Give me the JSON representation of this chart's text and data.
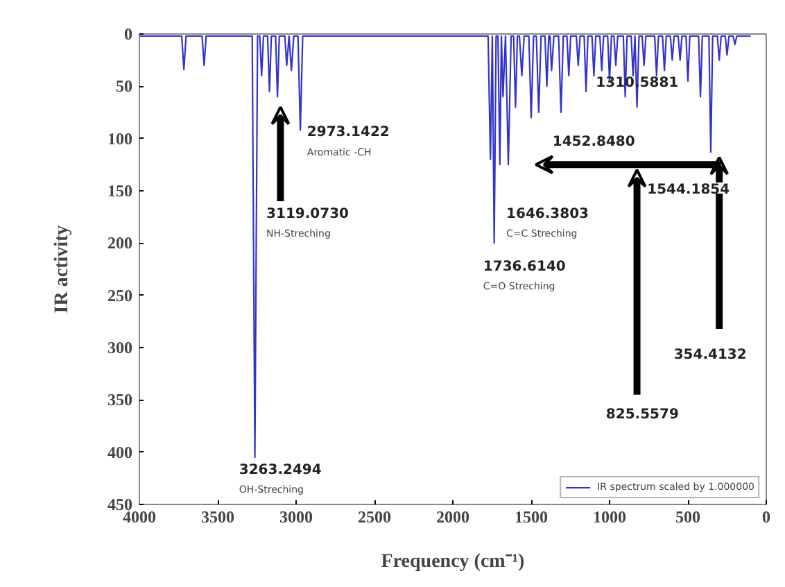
{
  "chart_data": {
    "type": "line",
    "xlabel": "Frequency (cm⁻¹)",
    "ylabel": "IR activity",
    "xlim": [
      4000,
      0
    ],
    "ylim": [
      450,
      0
    ],
    "xticks": [
      4000,
      3500,
      3000,
      2500,
      2000,
      1500,
      1000,
      500,
      0
    ],
    "yticks": [
      0,
      50,
      100,
      150,
      200,
      250,
      300,
      350,
      400,
      450
    ],
    "grid": false,
    "legend": "bottom right",
    "marker": "none",
    "line_style": "solid",
    "series": [
      {
        "name": "IR spectrum scaled by 1.000000",
        "color": "#3333cc",
        "x": [
          4000,
          3730,
          3716,
          3702,
          3600,
          3587,
          3574,
          3280,
          3263,
          3246,
          3232,
          3220,
          3208,
          3182,
          3170,
          3158,
          3131,
          3119,
          3107,
          3072,
          3060,
          3045,
          3030,
          3015,
          2988,
          2973,
          2958,
          1775,
          1760,
          1748,
          1736,
          1724,
          1712,
          1700,
          1690,
          1680,
          1664,
          1646,
          1628,
          1612,
          1600,
          1588,
          1575,
          1560,
          1545,
          1515,
          1500,
          1485,
          1467,
          1452,
          1437,
          1412,
          1400,
          1388,
          1380,
          1370,
          1355,
          1325,
          1310,
          1295,
          1272,
          1260,
          1248,
          1212,
          1200,
          1188,
          1162,
          1150,
          1138,
          1112,
          1100,
          1088,
          1062,
          1050,
          1038,
          1012,
          1000,
          988,
          972,
          960,
          948,
          912,
          900,
          888,
          862,
          850,
          838,
          825,
          812,
          792,
          780,
          768,
          712,
          700,
          688,
          662,
          650,
          638,
          612,
          600,
          588,
          562,
          550,
          538,
          512,
          500,
          488,
          432,
          420,
          408,
          366,
          354,
          342,
          312,
          300,
          288,
          262,
          250,
          238,
          212,
          200,
          188,
          100
        ],
        "values": [
          2,
          2,
          34,
          2,
          2,
          30,
          2,
          2,
          405,
          2,
          2,
          40,
          2,
          2,
          55,
          2,
          2,
          60,
          2,
          2,
          30,
          2,
          35,
          2,
          2,
          92,
          2,
          2,
          120,
          2,
          200,
          2,
          2,
          125,
          2,
          60,
          2,
          125,
          2,
          2,
          70,
          2,
          2,
          40,
          2,
          2,
          80,
          2,
          2,
          75,
          2,
          2,
          50,
          2,
          2,
          35,
          2,
          2,
          75,
          2,
          2,
          40,
          2,
          2,
          30,
          2,
          2,
          55,
          2,
          2,
          40,
          2,
          2,
          35,
          2,
          2,
          45,
          2,
          2,
          30,
          2,
          2,
          60,
          2,
          2,
          40,
          2,
          70,
          2,
          2,
          30,
          2,
          2,
          40,
          2,
          2,
          35,
          2,
          2,
          25,
          2,
          2,
          25,
          2,
          2,
          45,
          2,
          2,
          60,
          2,
          2,
          113,
          2,
          2,
          25,
          2,
          2,
          20,
          2,
          2,
          10,
          2,
          2
        ]
      }
    ],
    "annotations": [
      "2973.1422",
      "Aromatic -CH",
      "3119.0730",
      "NH-Streching",
      "3263.2494",
      "OH-Streching",
      "1310.5881",
      "1452.8480",
      "1544.1854",
      "1646.3803",
      "C=C Streching",
      "1736.6140",
      "C=O Streching",
      "825.5579",
      "354.4132"
    ]
  }
}
